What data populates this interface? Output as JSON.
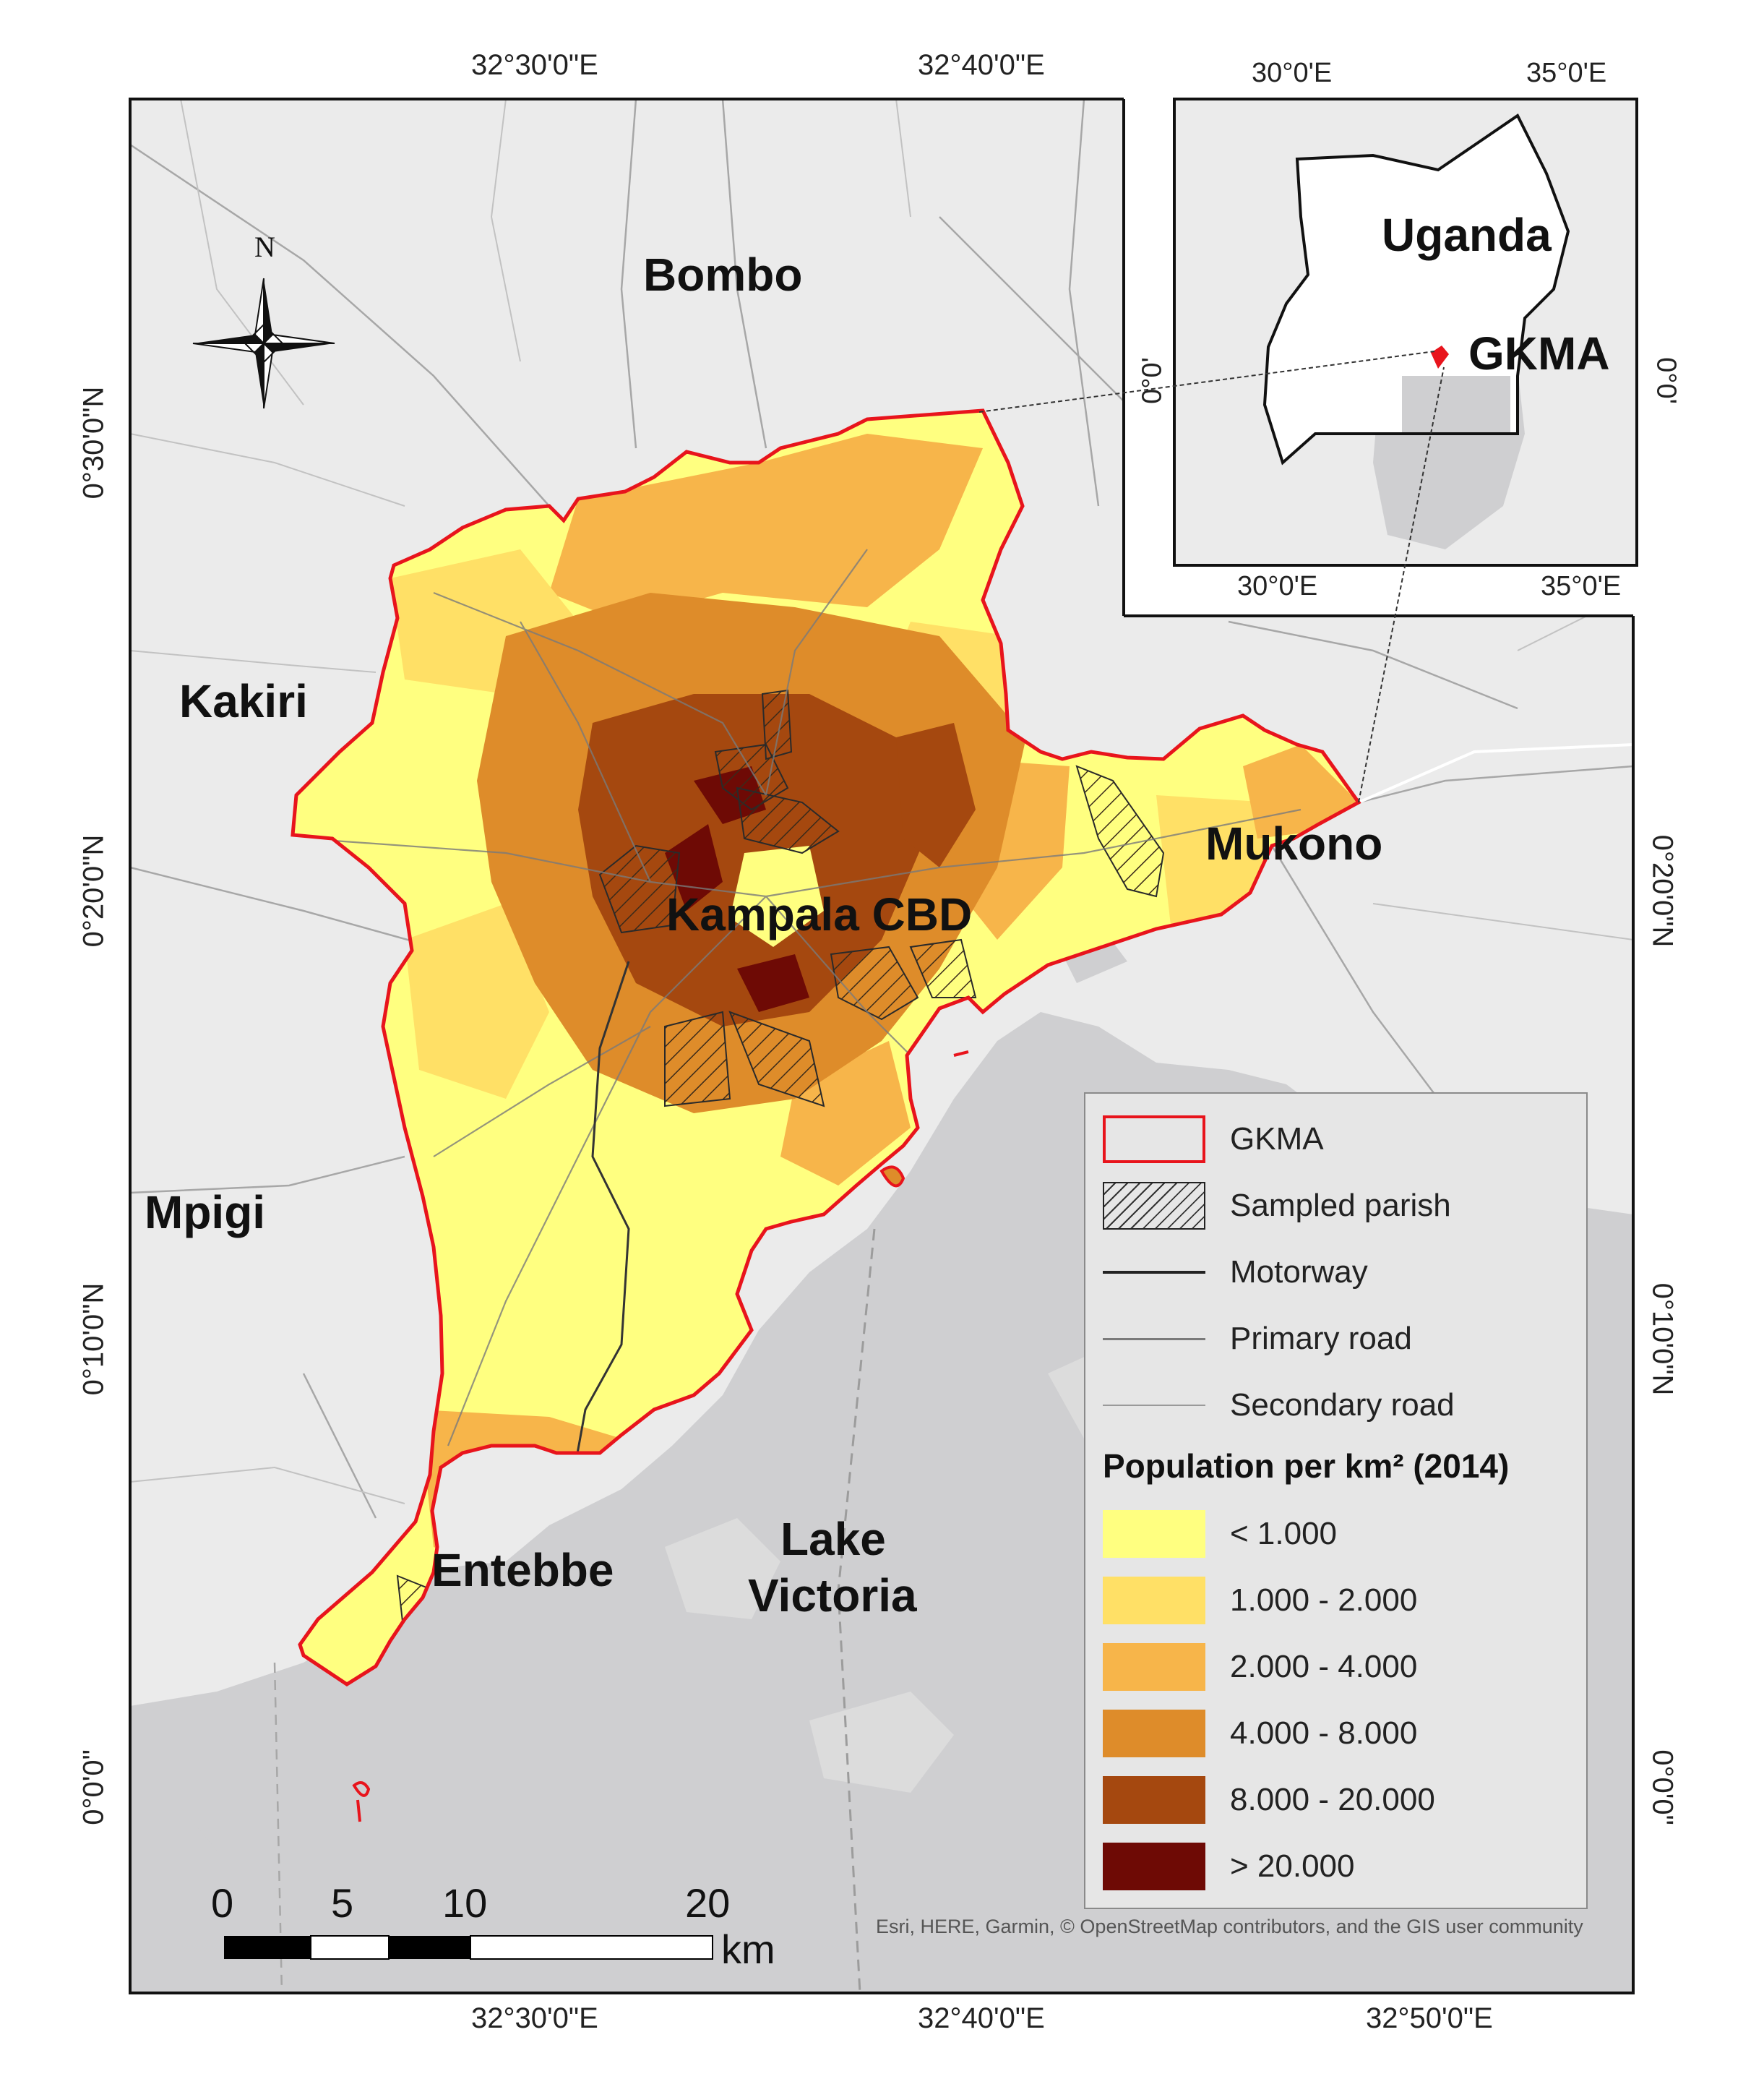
{
  "map": {
    "graticule_top": [
      "32°30'0\"E",
      "32°40'0\"E"
    ],
    "graticule_bottom": [
      "32°30'0\"E",
      "32°40'0\"E",
      "32°50'0\"E"
    ],
    "graticule_left": [
      "0°30'0\"N",
      "0°20'0\"N",
      "0°10'0\"N",
      "0°0'0\""
    ],
    "graticule_right": [
      "0°20'0\"N",
      "0°10'0\"N",
      "0°0'0\""
    ],
    "places": {
      "bombo": "Bombo",
      "kakiri": "Kakiri",
      "mpigi": "Mpigi",
      "mukono": "Mukono",
      "kampala": "Kampala CBD",
      "entebbe": "Entebbe",
      "lake": [
        "Lake",
        "Victoria"
      ]
    },
    "north_label": "N",
    "north_arrow_icon": "compass-rose-icon",
    "colors": {
      "background": "#ebebeb",
      "water": "#cfcfd1",
      "boundary": "#e8141c",
      "density": [
        "#ffff80",
        "#ffe066",
        "#f7b54a",
        "#de8c2a",
        "#a5480f",
        "#6e0a05"
      ]
    }
  },
  "inset": {
    "country": "Uganda",
    "region": "GKMA",
    "lon_top": [
      "30°0'E",
      "35°0'E"
    ],
    "lon_bottom": [
      "30°0'E",
      "35°0'E"
    ],
    "lat_left": "0°0'",
    "lat_right": "0°0'"
  },
  "legend": {
    "items": [
      {
        "symbol": "gkma-boundary",
        "label": "GKMA"
      },
      {
        "symbol": "hatched",
        "label": "Sampled parish"
      },
      {
        "symbol": "motorway-line",
        "label": "Motorway"
      },
      {
        "symbol": "primary-road-line",
        "label": "Primary road"
      },
      {
        "symbol": "secondary-road-line",
        "label": "Secondary road"
      }
    ],
    "density_title": "Population per km² (2014)",
    "classes": [
      {
        "label": "< 1.000",
        "color": "#ffff80"
      },
      {
        "label": "1.000 - 2.000",
        "color": "#ffe066"
      },
      {
        "label": "2.000 - 4.000",
        "color": "#f7b54a"
      },
      {
        "label": "4.000 - 8.000",
        "color": "#de8c2a"
      },
      {
        "label": "8.000 - 20.000",
        "color": "#a5480f"
      },
      {
        "label": "> 20.000",
        "color": "#6e0a05"
      }
    ]
  },
  "scalebar": {
    "ticks": [
      "0",
      "5",
      "10",
      "20"
    ],
    "unit": "km"
  },
  "attribution": "Esri, HERE, Garmin, © OpenStreetMap contributors, and the GIS user community"
}
